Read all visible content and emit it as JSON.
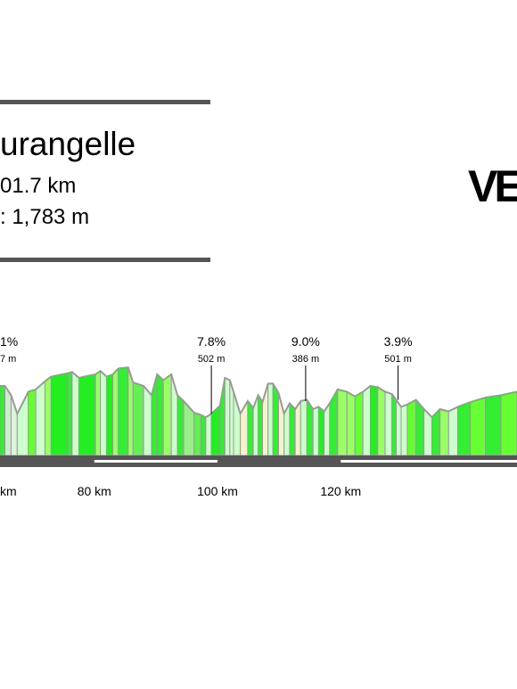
{
  "header": {
    "title": "urangelle",
    "distance": "01.7 km",
    "elevation": ": 1,783 m"
  },
  "logo": {
    "text": "VE"
  },
  "chart_data": {
    "type": "area",
    "xlabel": "",
    "ylabel": "",
    "x_unit": "km",
    "xlim": [
      64.7,
      148.6
    ],
    "x_ticks": [
      {
        "value": 70,
        "label": "km"
      },
      {
        "value": 80,
        "label": "80 km"
      },
      {
        "value": 100,
        "label": "100 km"
      },
      {
        "value": 120,
        "label": "120 km"
      }
    ],
    "distance_scale_segments": [
      {
        "from": 64.7,
        "to": 80,
        "style": "dark"
      },
      {
        "from": 80,
        "to": 100,
        "style": "light"
      },
      {
        "from": 100,
        "to": 120,
        "style": "dark"
      },
      {
        "from": 120,
        "to": 148.6,
        "style": "light"
      }
    ],
    "profile": {
      "x": [
        64.7,
        65.5,
        66.5,
        67.5,
        69.3,
        70.5,
        72.0,
        73.0,
        75.7,
        76.4,
        77.5,
        80.2,
        81.0,
        82.0,
        83.0,
        83.9,
        85.5,
        86.3,
        88.0,
        89.3,
        90.2,
        91.2,
        92.5,
        93.5,
        94.5,
        96.2,
        97.3,
        98.1,
        99.0,
        100.4,
        101.2,
        102.0,
        102.6,
        103.7,
        104.9,
        105.8,
        106.6,
        107.3,
        108.2,
        109.0,
        109.9,
        110.8,
        111.7,
        112.6,
        113.5,
        114.5,
        115.5,
        116.4,
        117.3,
        118.2,
        119.5,
        121.0,
        122.3,
        123.6,
        124.8,
        126.0,
        127.2,
        128.3,
        129.0,
        129.8,
        130.8,
        132.2,
        133.5,
        134.8,
        136.1,
        137.5,
        139.0,
        141.0,
        143.5,
        146.0,
        148.6
      ],
      "elev": [
        60,
        60,
        52,
        36,
        55,
        57,
        64,
        68,
        71,
        72,
        67,
        70,
        73,
        68,
        70,
        75,
        76,
        63,
        60,
        52,
        70,
        65,
        70,
        52,
        47,
        37,
        35,
        33,
        36,
        43,
        67,
        65,
        55,
        36,
        47,
        41,
        52,
        46,
        62,
        62,
        54,
        36,
        45,
        40,
        47,
        48,
        40,
        42,
        38,
        45,
        57,
        55,
        51,
        55,
        60,
        59,
        55,
        53,
        48,
        42,
        44,
        48,
        40,
        33,
        40,
        38,
        42,
        46,
        50,
        52,
        55
      ],
      "colors": [
        "#33ee33",
        "#cceecc",
        "#ddf3dd",
        "#ccffcc",
        "#66ff33",
        "#ccffcc",
        "#99ff66",
        "#22ee22",
        "#33ee33",
        "#ccffcc",
        "#22ee22",
        "#99ff66",
        "#ccffcc",
        "#22ee22",
        "#99ff66",
        "#33ee33",
        "#99ff66",
        "#66ee55",
        "#ccffcc",
        "#33ee33",
        "#33ee33",
        "#99ff66",
        "#ccffcc",
        "#33ee33",
        "#99ee88",
        "#66ee55",
        "#33ee33",
        "#ccffcc",
        "#22ee22",
        "#33ee33",
        "#ccffcc",
        "#ccffcc",
        "#ccffcc",
        "#f3f3cc",
        "#33ee33",
        "#ccffcc",
        "#33ee33",
        "#f3f3cc",
        "#ccffcc",
        "#33ee33",
        "#f3f3cc",
        "#ccffcc",
        "#33ee33",
        "#f3f3cc",
        "#ccffcc",
        "#33ee33",
        "#ccffcc",
        "#22ee22",
        "#ccffcc",
        "#33ee33",
        "#99ff66",
        "#99ff66",
        "#66ff33",
        "#ccffcc",
        "#22ee22",
        "#99ff66",
        "#ccffcc",
        "#33ee33",
        "#ccffcc",
        "#ccffcc",
        "#66ff33",
        "#33ee33",
        "#ccffcc",
        "#33ee33",
        "#99ff66",
        "#ccffcc",
        "#33ee33",
        "#66ff33",
        "#33ee33",
        "#66ff33"
      ]
    },
    "climbs": [
      {
        "km": 64.7,
        "gradient": "1%",
        "height": "7 m",
        "partial": true
      },
      {
        "km": 99.0,
        "gradient": "7.8%",
        "height": "502 m"
      },
      {
        "km": 114.3,
        "gradient": "9.0%",
        "height": "386 m"
      },
      {
        "km": 129.3,
        "gradient": "3.9%",
        "height": "501 m"
      }
    ],
    "colors": {
      "outline": "#999999",
      "scale_dark": "#555555",
      "scale_light": "#ffffff",
      "marker_line": "#000000"
    }
  }
}
